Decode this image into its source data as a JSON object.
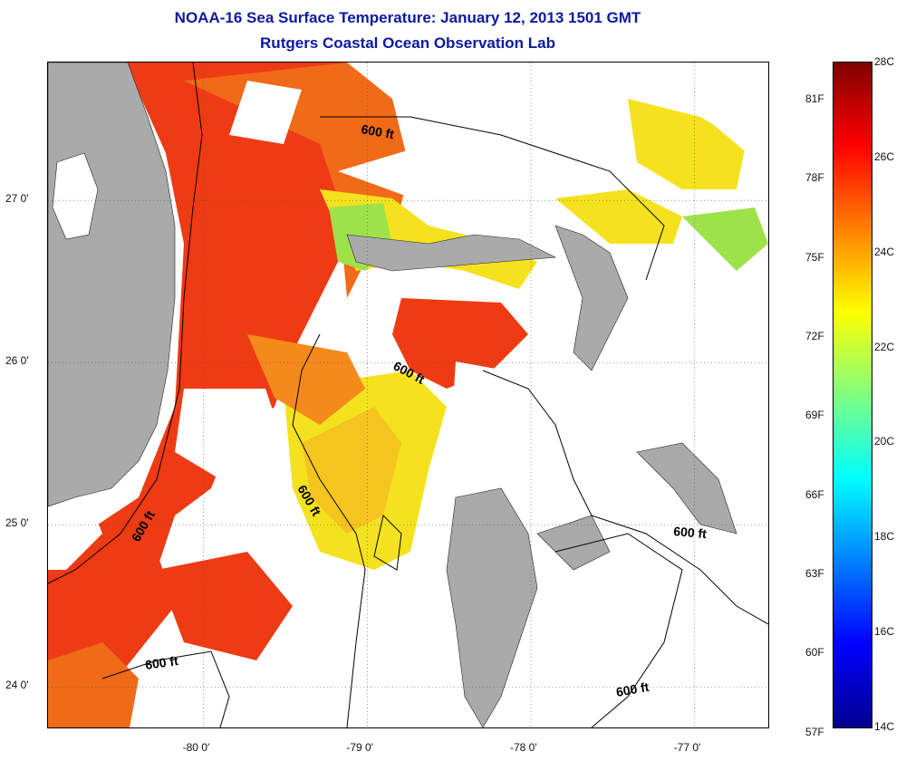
{
  "title": {
    "line1": "NOAA-16 Sea Surface Temperature:  January 12, 2013 1501 GMT",
    "line2": "Rutgers Coastal Ocean Observation Lab"
  },
  "map": {
    "lon_range": [
      -80.95,
      -76.55
    ],
    "lat_range": [
      23.75,
      27.85
    ],
    "lon_ticks": [
      {
        "value": -80,
        "label": "-80 0'"
      },
      {
        "value": -79,
        "label": "-79 0'"
      },
      {
        "value": -78,
        "label": "-78 0'"
      },
      {
        "value": -77,
        "label": "-77 0'"
      }
    ],
    "lat_ticks": [
      {
        "value": 27,
        "label": "27 0'"
      },
      {
        "value": 26,
        "label": "26 0'"
      },
      {
        "value": 25,
        "label": "25 0'"
      },
      {
        "value": 24,
        "label": "24 0'"
      }
    ],
    "contour_labels": [
      "600 ft",
      "600 ft",
      "600 ft",
      "600 ft",
      "600 ft",
      "600 ft"
    ],
    "colors": {
      "land": "#aaaaaa",
      "cloud": "#ffffff",
      "red": "#ee3b14",
      "orange": "#f58a1c",
      "yellow": "#f5e21e",
      "green": "#9ee24a",
      "cyan": "#2ee8d8",
      "blue": "#1e44e8"
    }
  },
  "colorbar": {
    "celsius_labels": [
      "28C",
      "26C",
      "24C",
      "22C",
      "20C",
      "18C",
      "16C",
      "14C"
    ],
    "fahrenheit_labels": [
      "81F",
      "78F",
      "75F",
      "72F",
      "69F",
      "66F",
      "63F",
      "60F",
      "57F"
    ],
    "range_c": [
      14,
      28
    ],
    "stops": [
      "#00008f",
      "#0000ff",
      "#0080ff",
      "#00ffff",
      "#80ff80",
      "#ffff00",
      "#ff8000",
      "#ff0000",
      "#800000"
    ]
  }
}
